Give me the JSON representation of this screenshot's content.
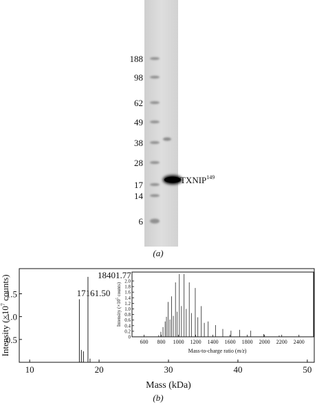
{
  "panel_a": {
    "ladder_labels": [
      "188",
      "98",
      "62",
      "49",
      "38",
      "28",
      "17",
      "14",
      "6"
    ],
    "band_label": "TXNIP",
    "band_label_sup": "149",
    "caption": "(a)"
  },
  "panel_b": {
    "caption": "(b)",
    "main_ylabel": "Intensity (×10",
    "main_ylabel_exp": "7",
    "main_ylabel_tail": " counts)",
    "main_xlabel": "Mass (kDa)",
    "peak_label_1": "17161.50",
    "peak_label_2": "18401.77",
    "inset_ylabel": "Intensity (×10",
    "inset_ylabel_exp": "5",
    "inset_ylabel_tail": " counts)",
    "inset_xlabel_pre": "Mass-to-charge ratio (",
    "inset_xlabel_mz": "m/z",
    "inset_xlabel_post": ")"
  },
  "chart_data": [
    {
      "type": "bar",
      "xlabel": "Mass (kDa)",
      "ylabel": "Intensity (×10^7 counts)",
      "xlim": [
        8.5,
        51
      ],
      "ylim": [
        0,
        2.05
      ],
      "xticks": [
        10,
        20,
        30,
        40,
        50
      ],
      "yticks": [
        0.5,
        1.0,
        1.5
      ],
      "ytick_labels": [
        "0.5",
        "1.0",
        "1.5"
      ],
      "peaks": [
        {
          "x": 17.16,
          "y": 1.38
        },
        {
          "x": 17.45,
          "y": 0.27
        },
        {
          "x": 17.75,
          "y": 0.24
        },
        {
          "x": 18.4,
          "y": 1.87
        },
        {
          "x": 18.7,
          "y": 0.08
        }
      ],
      "annotations": [
        "17161.50",
        "18401.77"
      ]
    },
    {
      "type": "bar",
      "xlabel": "Mass-to-charge ratio (m/z)",
      "ylabel": "Intensity (×10^5 counts)",
      "xlim": [
        460,
        2570
      ],
      "ylim": [
        0,
        2.32
      ],
      "xticks": [
        600,
        800,
        1000,
        1200,
        1400,
        1600,
        1800,
        2000,
        2200,
        2400
      ],
      "yticks": [
        0,
        0.2,
        0.4,
        0.6,
        0.8,
        1.0,
        1.2,
        1.4,
        1.6,
        1.8,
        2.0
      ],
      "ytick_labels": [
        "0",
        "0.2",
        "0.4",
        "0.6",
        "0.8",
        "1.0",
        "1.2",
        "1.4",
        "1.6",
        "1.8",
        "2.0"
      ],
      "peaks": [
        {
          "x": 770,
          "y": 0.06
        },
        {
          "x": 795,
          "y": 0.18
        },
        {
          "x": 820,
          "y": 0.35
        },
        {
          "x": 845,
          "y": 0.55
        },
        {
          "x": 860,
          "y": 0.72
        },
        {
          "x": 880,
          "y": 1.25
        },
        {
          "x": 900,
          "y": 0.62
        },
        {
          "x": 920,
          "y": 1.45
        },
        {
          "x": 940,
          "y": 0.75
        },
        {
          "x": 965,
          "y": 1.95
        },
        {
          "x": 985,
          "y": 0.9
        },
        {
          "x": 1010,
          "y": 2.25
        },
        {
          "x": 1035,
          "y": 1.1
        },
        {
          "x": 1065,
          "y": 2.25
        },
        {
          "x": 1090,
          "y": 1.0
        },
        {
          "x": 1125,
          "y": 1.95
        },
        {
          "x": 1150,
          "y": 0.85
        },
        {
          "x": 1195,
          "y": 1.75
        },
        {
          "x": 1225,
          "y": 0.7
        },
        {
          "x": 1265,
          "y": 1.1
        },
        {
          "x": 1300,
          "y": 0.5
        },
        {
          "x": 1345,
          "y": 0.55
        },
        {
          "x": 1430,
          "y": 0.42
        },
        {
          "x": 1515,
          "y": 0.28
        },
        {
          "x": 1610,
          "y": 0.22
        },
        {
          "x": 1710,
          "y": 0.25
        },
        {
          "x": 1840,
          "y": 0.22
        },
        {
          "x": 1990,
          "y": 0.1
        },
        {
          "x": 2170,
          "y": 0.05
        },
        {
          "x": 2400,
          "y": 0.03
        }
      ]
    }
  ]
}
